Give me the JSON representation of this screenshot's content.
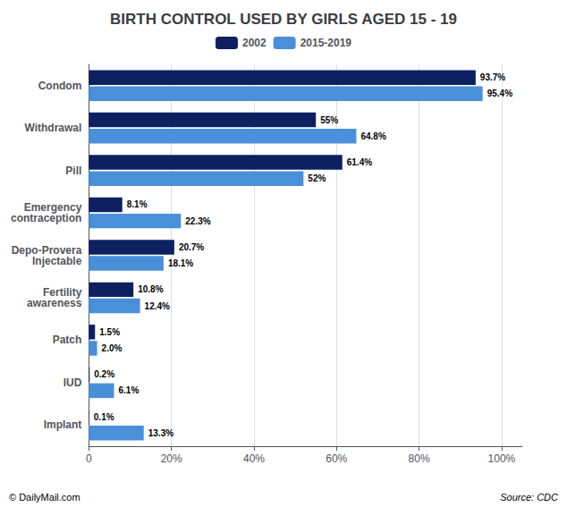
{
  "chart_data": {
    "type": "bar",
    "orientation": "horizontal",
    "title": "BIRTH CONTROL USED BY GIRLS AGED 15 - 19",
    "categories": [
      "Condom",
      "Withdrawal",
      "Pill",
      "Emergency\ncontraception",
      "Depo-Provera\nInjectable",
      "Fertility\nawareness",
      "Patch",
      "IUD",
      "Implant"
    ],
    "series": [
      {
        "name": "2002",
        "color": "#0d2161",
        "values": [
          93.7,
          55.0,
          61.4,
          8.1,
          20.7,
          10.8,
          1.5,
          0.2,
          0.1
        ],
        "value_labels": [
          "93.7%",
          "55%",
          "61.4%",
          "8.1%",
          "20.7%",
          "10.8%",
          "1.5%",
          "0.2%",
          "0.1%"
        ]
      },
      {
        "name": "2015-2019",
        "color": "#4a90d9",
        "values": [
          95.4,
          64.8,
          52.0,
          22.3,
          18.1,
          12.4,
          2.0,
          6.1,
          13.3
        ],
        "value_labels": [
          "95.4%",
          "64.8%",
          "52%",
          "22.3%",
          "18.1%",
          "12.4%",
          "2.0%",
          "6.1%",
          "13.3%"
        ]
      }
    ],
    "xlim": [
      0,
      105
    ],
    "xticks": [
      0,
      {
        "value": 20,
        "label": "20%"
      },
      {
        "value": 40,
        "label": "40%"
      },
      {
        "value": 60,
        "label": "60%"
      },
      {
        "value": 80,
        "label": "80%"
      },
      {
        "value": 100,
        "label": "100%"
      }
    ],
    "grid": true,
    "legend": "top",
    "data_labels": true,
    "annotations": [
      "Source: CDC",
      "© DailyMail.com"
    ]
  }
}
